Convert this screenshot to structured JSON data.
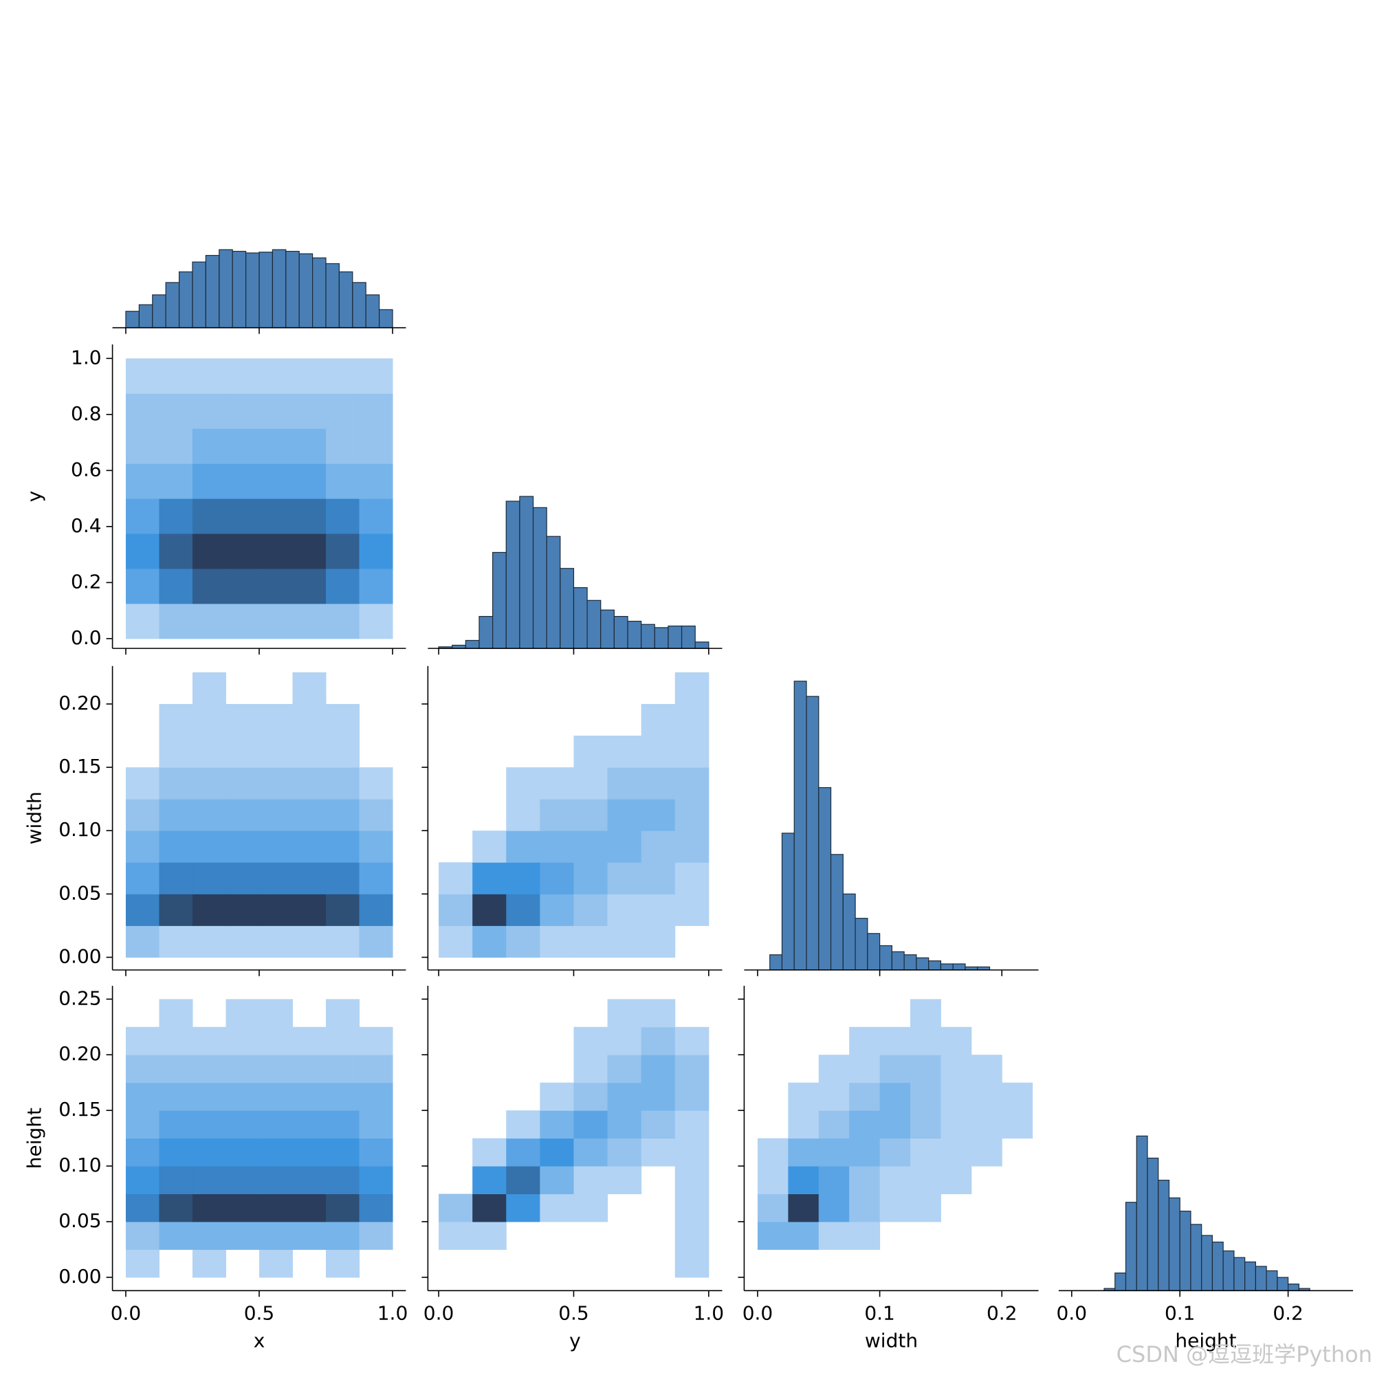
{
  "chart_data": [
    {
      "type": "histogram",
      "bins": [
        0,
        0.05,
        0.1,
        0.15,
        0.2,
        0.25,
        0.3,
        0.35,
        0.4,
        0.45,
        0.5,
        0.55,
        0.6,
        0.65,
        0.7,
        0.75,
        0.8,
        0.85,
        0.9,
        0.95,
        1.0
      ],
      "counts": [
        20,
        28,
        40,
        55,
        68,
        80,
        88,
        95,
        93,
        91,
        92,
        95,
        93,
        90,
        85,
        78,
        68,
        55,
        40,
        22
      ],
      "color": "#4a7fb5",
      "xlim": [
        -0.05,
        1.05
      ],
      "ylim": [
        0,
        370
      ],
      "xticks": [
        0,
        0.5,
        1
      ],
      "xticklabels": false
    },
    {
      "type": "hist2d",
      "xbins": [
        0,
        0.125,
        0.25,
        0.375,
        0.5,
        0.625,
        0.75,
        0.875,
        1.0
      ],
      "ybins": [
        0,
        0.125,
        0.25,
        0.375,
        0.5,
        0.625,
        0.75,
        0.875,
        1.0
      ],
      "counts": [
        [
          1,
          2,
          2,
          2,
          2,
          2,
          2,
          1
        ],
        [
          4,
          6,
          8,
          8,
          8,
          8,
          6,
          4
        ],
        [
          5,
          8,
          10,
          10,
          10,
          10,
          8,
          5
        ],
        [
          4,
          6,
          7,
          7,
          7,
          7,
          6,
          4
        ],
        [
          3,
          3,
          4,
          4,
          4,
          4,
          3,
          3
        ],
        [
          2,
          2,
          3,
          3,
          3,
          3,
          2,
          2
        ],
        [
          2,
          2,
          2,
          2,
          2,
          2,
          2,
          2
        ],
        [
          1,
          1,
          1,
          1,
          1,
          1,
          1,
          1
        ]
      ],
      "cmap": [
        "#cfe2f8",
        "#3d95e0",
        "#2a3d5c"
      ],
      "vmax": 10,
      "xlim": [
        -0.05,
        1.05
      ],
      "ylim": [
        -0.035,
        1.05
      ],
      "xticks": [
        0,
        0.5,
        1
      ],
      "xticklabels": false,
      "yticks": [
        {
          "value": 0,
          "label": "0.0"
        },
        0.2,
        0.4,
        0.6,
        0.8,
        {
          "value": 1,
          "label": "1.0"
        }
      ],
      "yticklabels": true,
      "ylabel": "y"
    },
    {
      "type": "histogram",
      "bins": [
        0,
        0.05,
        0.1,
        0.15,
        0.2,
        0.25,
        0.3,
        0.35,
        0.4,
        0.45,
        0.5,
        0.55,
        0.6,
        0.65,
        0.7,
        0.75,
        0.8,
        0.85,
        0.9,
        0.95,
        1.0
      ],
      "counts": [
        1,
        2,
        5,
        20,
        60,
        92,
        95,
        88,
        70,
        50,
        38,
        30,
        24,
        20,
        17,
        15,
        13,
        14,
        14,
        4
      ],
      "color": "#4a7fb5",
      "xlim": [
        -0.04,
        1.05
      ],
      "ylim": [
        0,
        190
      ],
      "xticks": [
        0,
        0.5,
        1
      ],
      "xticklabels": false
    },
    {
      "type": "hist2d",
      "xbins": [
        0,
        0.125,
        0.25,
        0.375,
        0.5,
        0.625,
        0.75,
        0.875,
        1.0
      ],
      "ybins": [
        0,
        0.025,
        0.05,
        0.075,
        0.1,
        0.125,
        0.15,
        0.175,
        0.2,
        0.225
      ],
      "counts": [
        [
          2,
          1,
          1,
          1,
          1,
          1,
          1,
          2
        ],
        [
          6,
          9,
          10,
          10,
          10,
          10,
          9,
          6
        ],
        [
          4,
          6,
          6,
          6,
          6,
          6,
          6,
          4
        ],
        [
          3,
          4,
          4,
          4,
          4,
          4,
          4,
          3
        ],
        [
          2,
          3,
          3,
          3,
          3,
          3,
          3,
          2
        ],
        [
          1,
          2,
          2,
          2,
          2,
          2,
          2,
          1
        ],
        [
          0,
          1,
          1,
          1,
          1,
          1,
          1,
          0
        ],
        [
          0,
          1,
          1,
          1,
          1,
          1,
          1,
          0
        ],
        [
          0,
          0,
          1,
          0,
          0,
          1,
          0,
          0
        ]
      ],
      "cmap": [
        "#cfe2f8",
        "#3d95e0",
        "#2a3d5c"
      ],
      "vmax": 10,
      "xlim": [
        -0.05,
        1.05
      ],
      "ylim": [
        -0.01,
        0.23
      ],
      "xticks": [
        0,
        0.5,
        1
      ],
      "xticklabels": false,
      "yticks": [
        {
          "value": 0,
          "label": "0.00"
        },
        0.05,
        {
          "value": 0.1,
          "label": "0.10"
        },
        0.15,
        {
          "value": 0.2,
          "label": "0.20"
        }
      ],
      "yticklabels": true,
      "ylabel": "width"
    },
    {
      "type": "hist2d",
      "xbins": [
        0,
        0.125,
        0.25,
        0.375,
        0.5,
        0.625,
        0.75,
        0.875,
        1.0
      ],
      "ybins": [
        0,
        0.025,
        0.05,
        0.075,
        0.1,
        0.125,
        0.15,
        0.175,
        0.2,
        0.225
      ],
      "counts": [
        [
          1,
          3,
          2,
          1,
          1,
          1,
          1,
          0
        ],
        [
          2,
          10,
          6,
          3,
          2,
          1,
          1,
          1
        ],
        [
          1,
          5,
          5,
          4,
          3,
          2,
          2,
          1
        ],
        [
          0,
          1,
          3,
          3,
          3,
          3,
          2,
          2
        ],
        [
          0,
          0,
          1,
          2,
          2,
          3,
          3,
          2
        ],
        [
          0,
          0,
          1,
          1,
          1,
          2,
          2,
          2
        ],
        [
          0,
          0,
          0,
          0,
          1,
          1,
          1,
          1
        ],
        [
          0,
          0,
          0,
          0,
          0,
          0,
          1,
          1
        ],
        [
          0,
          0,
          0,
          0,
          0,
          0,
          0,
          1
        ]
      ],
      "cmap": [
        "#cfe2f8",
        "#3d95e0",
        "#2a3d5c"
      ],
      "vmax": 10,
      "xlim": [
        -0.04,
        1.05
      ],
      "ylim": [
        -0.01,
        0.23
      ],
      "xticks": [
        0,
        0.5,
        1
      ],
      "xticklabels": false,
      "yticks": [
        0,
        0.05,
        0.1,
        0.15,
        0.2
      ],
      "yticklabels": false
    },
    {
      "type": "histogram",
      "bins": [
        0,
        0.01,
        0.02,
        0.03,
        0.04,
        0.05,
        0.06,
        0.07,
        0.08,
        0.09,
        0.1,
        0.11,
        0.12,
        0.13,
        0.14,
        0.15,
        0.16,
        0.17,
        0.18,
        0.19,
        0.2
      ],
      "counts": [
        0,
        5,
        45,
        95,
        90,
        60,
        38,
        25,
        17,
        12,
        8,
        6,
        5,
        4,
        3,
        2,
        2,
        1,
        1,
        0
      ],
      "color": "#4a7fb5",
      "xlim": [
        -0.011,
        0.23
      ],
      "ylim": [
        0,
        100
      ],
      "xticks": [
        0,
        0.1,
        0.2
      ],
      "xticklabels": false
    },
    {
      "type": "hist2d",
      "xbins": [
        0,
        0.125,
        0.25,
        0.375,
        0.5,
        0.625,
        0.75,
        0.875,
        1.0
      ],
      "ybins": [
        0,
        0.025,
        0.05,
        0.075,
        0.1,
        0.125,
        0.15,
        0.175,
        0.2,
        0.225,
        0.25
      ],
      "counts": [
        [
          1,
          0,
          1,
          0,
          1,
          0,
          1,
          0
        ],
        [
          2,
          3,
          3,
          3,
          3,
          3,
          3,
          2
        ],
        [
          6,
          9,
          10,
          10,
          10,
          10,
          9,
          6
        ],
        [
          5,
          6,
          6,
          6,
          6,
          6,
          6,
          5
        ],
        [
          4,
          5,
          5,
          5,
          5,
          5,
          5,
          4
        ],
        [
          3,
          4,
          4,
          4,
          4,
          4,
          4,
          3
        ],
        [
          3,
          3,
          3,
          3,
          3,
          3,
          3,
          3
        ],
        [
          2,
          2,
          2,
          2,
          2,
          2,
          2,
          2
        ],
        [
          1,
          1,
          1,
          1,
          1,
          1,
          1,
          1
        ],
        [
          0,
          1,
          0,
          1,
          1,
          0,
          1,
          0
        ]
      ],
      "cmap": [
        "#cfe2f8",
        "#3d95e0",
        "#2a3d5c"
      ],
      "vmax": 10,
      "xlim": [
        -0.05,
        1.05
      ],
      "ylim": [
        -0.012,
        0.262
      ],
      "xticks": [
        {
          "value": 0,
          "label": "0.0"
        },
        0.5,
        {
          "value": 1,
          "label": "1.0"
        }
      ],
      "xticklabels": true,
      "xlabel": "x",
      "yticks": [
        {
          "value": 0,
          "label": "0.00"
        },
        0.05,
        {
          "value": 0.1,
          "label": "0.10"
        },
        0.15,
        {
          "value": 0.2,
          "label": "0.20"
        },
        0.25
      ],
      "yticklabels": true,
      "ylabel": "height"
    },
    {
      "type": "hist2d",
      "xbins": [
        0,
        0.125,
        0.25,
        0.375,
        0.5,
        0.625,
        0.75,
        0.875,
        1.0
      ],
      "ybins": [
        0,
        0.025,
        0.05,
        0.075,
        0.1,
        0.125,
        0.15,
        0.175,
        0.2,
        0.225,
        0.25
      ],
      "counts": [
        [
          0,
          0,
          0,
          0,
          0,
          0,
          0,
          1
        ],
        [
          1,
          1,
          0,
          0,
          0,
          0,
          0,
          1
        ],
        [
          2,
          10,
          5,
          1,
          1,
          0,
          0,
          1
        ],
        [
          0,
          5,
          7,
          3,
          1,
          1,
          0,
          1
        ],
        [
          0,
          1,
          4,
          5,
          3,
          2,
          1,
          1
        ],
        [
          0,
          0,
          1,
          3,
          4,
          3,
          2,
          1
        ],
        [
          0,
          0,
          0,
          1,
          2,
          3,
          3,
          2
        ],
        [
          0,
          0,
          0,
          0,
          1,
          2,
          3,
          2
        ],
        [
          0,
          0,
          0,
          0,
          1,
          1,
          2,
          1
        ],
        [
          0,
          0,
          0,
          0,
          0,
          1,
          1,
          0
        ]
      ],
      "cmap": [
        "#cfe2f8",
        "#3d95e0",
        "#2a3d5c"
      ],
      "vmax": 10,
      "xlim": [
        -0.04,
        1.05
      ],
      "ylim": [
        -0.012,
        0.262
      ],
      "xticks": [
        {
          "value": 0,
          "label": "0.0"
        },
        0.5,
        {
          "value": 1,
          "label": "1.0"
        }
      ],
      "xticklabels": true,
      "xlabel": "y",
      "yticks": [
        0,
        0.05,
        0.1,
        0.15,
        0.2,
        0.25
      ],
      "yticklabels": false
    },
    {
      "type": "hist2d",
      "xbins": [
        0,
        0.025,
        0.05,
        0.075,
        0.1,
        0.125,
        0.15,
        0.175,
        0.2,
        0.225
      ],
      "ybins": [
        0,
        0.025,
        0.05,
        0.075,
        0.1,
        0.125,
        0.15,
        0.175,
        0.2,
        0.225,
        0.25
      ],
      "counts": [
        [
          0,
          0,
          0,
          0,
          0,
          0,
          0,
          0,
          0
        ],
        [
          3,
          3,
          1,
          1,
          0,
          0,
          0,
          0,
          0
        ],
        [
          2,
          10,
          4,
          2,
          1,
          1,
          0,
          0,
          0
        ],
        [
          1,
          5,
          4,
          2,
          1,
          1,
          1,
          0,
          0
        ],
        [
          1,
          3,
          3,
          3,
          2,
          1,
          1,
          1,
          0
        ],
        [
          0,
          1,
          2,
          3,
          3,
          2,
          1,
          1,
          1
        ],
        [
          0,
          1,
          1,
          2,
          3,
          2,
          1,
          1,
          1
        ],
        [
          0,
          0,
          1,
          1,
          2,
          2,
          1,
          1,
          0
        ],
        [
          0,
          0,
          0,
          1,
          1,
          1,
          1,
          0,
          0
        ],
        [
          0,
          0,
          0,
          0,
          0,
          1,
          0,
          0,
          0
        ]
      ],
      "cmap": [
        "#cfe2f8",
        "#3d95e0",
        "#2a3d5c"
      ],
      "vmax": 10,
      "xlim": [
        -0.011,
        0.23
      ],
      "ylim": [
        -0.012,
        0.262
      ],
      "xticks": [
        {
          "value": 0,
          "label": "0.0"
        },
        0.1,
        0.2
      ],
      "xticklabels": true,
      "xlabel": "width",
      "yticks": [
        0,
        0.05,
        0.1,
        0.15,
        0.2,
        0.25
      ],
      "yticklabels": false
    },
    {
      "type": "histogram",
      "bins": [
        0,
        0.01,
        0.02,
        0.03,
        0.04,
        0.05,
        0.06,
        0.07,
        0.08,
        0.09,
        0.1,
        0.11,
        0.12,
        0.13,
        0.14,
        0.15,
        0.16,
        0.17,
        0.18,
        0.19,
        0.2,
        0.21,
        0.22,
        0.23,
        0.24
      ],
      "counts": [
        0,
        0,
        0,
        1,
        8,
        40,
        70,
        60,
        50,
        42,
        36,
        30,
        25,
        22,
        18,
        15,
        13,
        11,
        9,
        6,
        3,
        1,
        0,
        0
      ],
      "color": "#4a7fb5",
      "xlim": [
        -0.012,
        0.26
      ],
      "ylim": [
        0,
        138
      ],
      "xticks": [
        {
          "value": 0,
          "label": "0.0"
        },
        0.1,
        0.2
      ],
      "xticklabels": true,
      "xlabel": "height"
    }
  ],
  "watermark": "CSDN @逗逗班学Python"
}
